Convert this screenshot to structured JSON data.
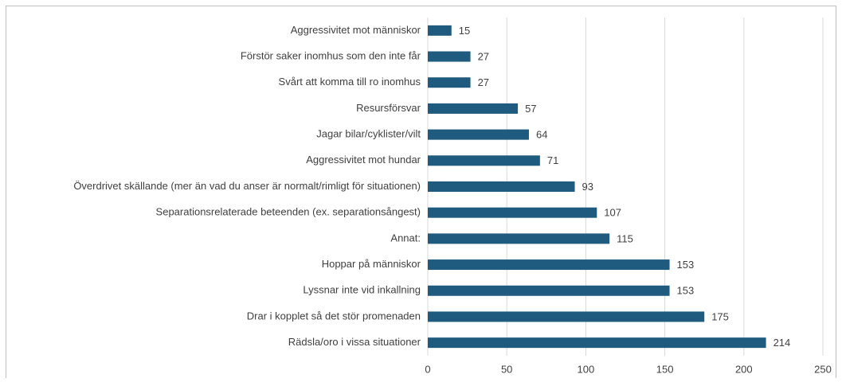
{
  "chart_data": {
    "type": "bar",
    "orientation": "horizontal",
    "categories": [
      "Aggressivitet mot människor",
      "Förstör saker inomhus som den inte får",
      "Svårt att komma till ro inomhus",
      "Resursförsvar",
      "Jagar bilar/cyklister/vilt",
      "Aggressivitet mot hundar",
      "Överdrivet skällande (mer än vad du anser är normalt/rimligt för situationen)",
      "Separationsrelaterade beteenden (ex. separationsångest)",
      "Annat:",
      "Hoppar på människor",
      "Lyssnar inte vid inkallning",
      "Drar i kopplet så det stör promenaden",
      "Rädsla/oro i vissa situationer"
    ],
    "values": [
      15,
      27,
      27,
      57,
      64,
      71,
      93,
      107,
      115,
      153,
      153,
      175,
      214
    ],
    "color": "#1f5b7e",
    "xlim": [
      0,
      250
    ],
    "xticks": [
      0,
      50,
      100,
      150,
      200,
      250
    ],
    "grid": true
  }
}
